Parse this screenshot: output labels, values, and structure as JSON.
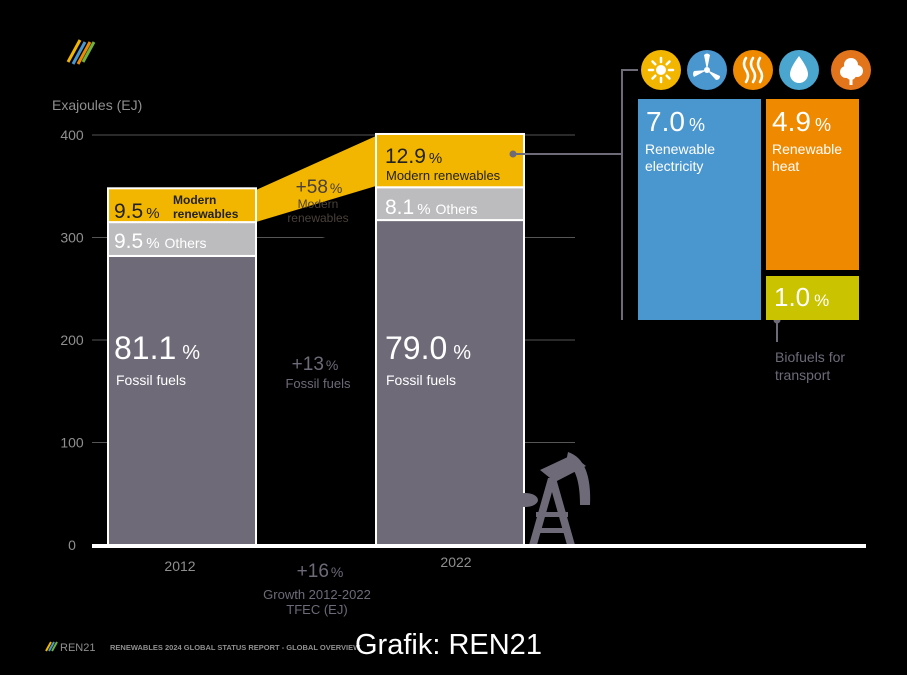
{
  "chart_data": {
    "type": "bar",
    "stacked": true,
    "ylabel": "Exajoules (EJ)",
    "ylim": [
      0,
      400
    ],
    "yticks": [
      0,
      100,
      200,
      300,
      400
    ],
    "yticks_labels": [
      "0",
      "100",
      "200",
      "300",
      "400"
    ],
    "grid": true,
    "categories": [
      "2012",
      "2022"
    ],
    "series": [
      {
        "name": "Fossil fuels",
        "values": [
          282,
          317
        ],
        "labels": [
          "81.1",
          "79.0"
        ],
        "color": "#6e6a78"
      },
      {
        "name": "Others",
        "values": [
          33,
          32
        ],
        "labels": [
          "9.5",
          "8.1"
        ],
        "color": "#bcbcbe"
      },
      {
        "name": "Modern renewables",
        "values": [
          33,
          52
        ],
        "labels": [
          "9.5",
          "12.9"
        ],
        "color": "#f2b600"
      }
    ],
    "pct_sign": "%",
    "label_others": "Others",
    "label_fossil": "Fossil fuels",
    "label_modren_2012": [
      "Modern",
      "renewables"
    ],
    "label_modren_2022": "Modern renewables",
    "growth": {
      "modern_renewables": {
        "value": "+58",
        "label": [
          "Modern",
          "renewables"
        ]
      },
      "fossil_fuels": {
        "value": "+13",
        "label": "Fossil fuels"
      },
      "tfec": {
        "value": "+16",
        "label": [
          "Growth 2012-2022",
          "TFEC (EJ)"
        ]
      }
    },
    "breakdown": [
      {
        "value": "7.0",
        "label": [
          "Renewable",
          "electricity"
        ],
        "color": "#4a96cf"
      },
      {
        "value": "4.9",
        "label": [
          "Renewable",
          "heat"
        ],
        "color": "#ef8a00"
      },
      {
        "value": "1.0",
        "label": [
          "Biofuels for",
          "transport"
        ],
        "color": "#c9c300"
      }
    ]
  },
  "icons": [
    {
      "name": "sun-icon",
      "color": "#f2b600"
    },
    {
      "name": "wind-turbine-icon",
      "color": "#4a96cf"
    },
    {
      "name": "heat-waves-icon",
      "color": "#ef8a00"
    },
    {
      "name": "water-drop-icon",
      "color": "#4aa6cf"
    },
    {
      "name": "tree-icon",
      "color": "#e2741c"
    }
  ],
  "footer": {
    "brand": "REN21",
    "report": "RENEWABLES 2024 GLOBAL STATUS REPORT - GLOBAL OVERVIEW",
    "credit": "Grafik: REN21"
  }
}
